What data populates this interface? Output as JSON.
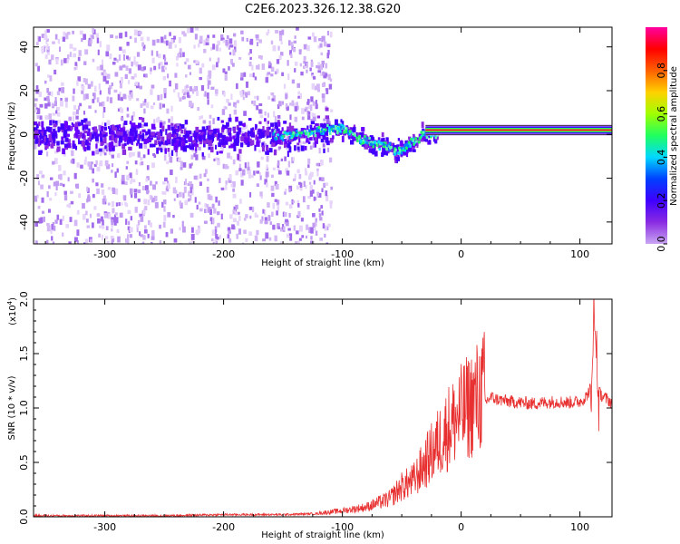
{
  "title": "C2E6.2023.326.12.38.G20",
  "chart_data": [
    {
      "type": "heatmap",
      "xlabel": "Height of straight line (km)",
      "ylabel": "Frequency (Hz)",
      "xlim": [
        -360,
        127
      ],
      "ylim": [
        -50,
        49
      ],
      "xticks": [
        -300,
        -200,
        -100,
        0,
        100
      ],
      "yticks": [
        -40,
        -20,
        0,
        20,
        40
      ],
      "colorbar": {
        "label": "Normalized spectral amplitude",
        "range": [
          0.0,
          1.0
        ],
        "ticks": [
          0.0,
          0.2,
          0.4,
          0.6,
          0.8
        ],
        "colors": [
          "#ffffff",
          "#c9a6f2",
          "#8a2be2",
          "#3f00ff",
          "#0040ff",
          "#00d8ff",
          "#20ff60",
          "#a0ff00",
          "#ffd000",
          "#ff6000",
          "#ff0000",
          "#ff00a0"
        ]
      },
      "ridge": {
        "x": [
          -360,
          -250,
          -150,
          -110,
          -100,
          -90,
          -80,
          -70,
          -60,
          -55,
          -50,
          -45,
          -40,
          -35,
          -30,
          -20,
          -10,
          0,
          50,
          100,
          127
        ],
        "y": [
          0,
          0,
          0,
          3,
          4,
          0,
          -3,
          -4,
          -5,
          -8,
          -6,
          -4,
          -2,
          0,
          1,
          1,
          1,
          2,
          2,
          2,
          2
        ]
      }
    },
    {
      "type": "line",
      "xlabel": "Height of straight line (km)",
      "ylabel": "SNR (10 * v/v)",
      "exponent": "(x10",
      "exponent_power": "4",
      "xlim": [
        -360,
        127
      ],
      "ylim": [
        0.0,
        2.0
      ],
      "xticks": [
        -300,
        -200,
        -100,
        0,
        100
      ],
      "yticks": [
        "0.0",
        "0.5",
        "1.0",
        "1.5",
        "2.0"
      ],
      "color": "#e83030",
      "series": [
        {
          "x": [
            -360,
            -300,
            -250,
            -200,
            -150,
            -120,
            -100,
            -80,
            -60,
            -50,
            -40,
            -30,
            -20,
            -10,
            0,
            10,
            20,
            25,
            30,
            40,
            50,
            60,
            70,
            80,
            90,
            100,
            105,
            110,
            112,
            115,
            120,
            127
          ],
          "y": [
            0.01,
            0.01,
            0.01,
            0.02,
            0.02,
            0.03,
            0.05,
            0.08,
            0.15,
            0.25,
            0.3,
            0.45,
            0.6,
            0.75,
            0.85,
            0.95,
            1.05,
            1.1,
            1.08,
            1.06,
            1.05,
            1.04,
            1.05,
            1.06,
            1.05,
            1.06,
            1.1,
            1.2,
            1.9,
            1.15,
            1.1,
            1.05
          ]
        }
      ]
    }
  ]
}
